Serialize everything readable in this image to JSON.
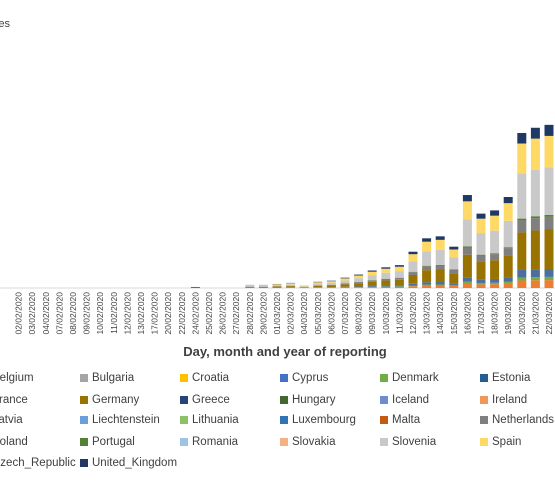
{
  "chart_data": {
    "type": "stacked_bar",
    "y_label": "Cases",
    "x_label": "Day, month and year of reporting",
    "ylim": [
      0,
      8000
    ],
    "categories": [
      null,
      "02/02/2020",
      "03/02/2020",
      "04/02/2020",
      "07/02/2020",
      "08/02/2020",
      "09/02/2020",
      "10/02/2020",
      "11/02/2020",
      "12/02/2020",
      "13/02/2020",
      "17/02/2020",
      "20/02/2020",
      "22/02/2020",
      "24/02/2020",
      "25/02/2020",
      "26/02/2020",
      "27/02/2020",
      "28/02/2020",
      "29/02/2020",
      "01/03/2020",
      "02/03/2020",
      "04/03/2020",
      "05/03/2020",
      "06/03/2020",
      "07/03/2020",
      "08/03/2020",
      "09/03/2020",
      "10/03/2020",
      "11/03/2020",
      "12/03/2020",
      "13/03/2020",
      "14/03/2020",
      "15/03/2020",
      "16/03/2020",
      "17/03/2020",
      "18/03/2020",
      "19/03/2020",
      "20/03/2020",
      "21/03/2020",
      "22/03/2020"
    ],
    "series": [
      {
        "name": "Belgium",
        "color": "#ed7d31",
        "values": [
          0,
          0,
          0,
          0,
          0,
          0,
          0,
          0,
          0,
          0,
          0,
          0,
          0,
          0,
          0,
          0,
          0,
          0,
          6,
          6,
          8,
          10,
          4,
          12,
          14,
          19,
          25,
          33,
          39,
          43,
          68,
          93,
          96,
          77,
          173,
          139,
          145,
          170,
          289,
          299,
          304
        ]
      },
      {
        "name": "Bulgaria",
        "color": "#a5a5a5",
        "values": [
          0,
          0,
          0,
          0,
          0,
          0,
          0,
          0,
          0,
          0,
          0,
          0,
          0,
          0,
          0,
          0,
          0,
          0,
          0,
          0,
          0,
          0,
          0,
          0,
          0,
          0,
          0,
          0,
          0,
          0,
          0,
          0,
          0,
          0,
          0,
          0,
          0,
          0,
          0,
          0,
          0
        ]
      },
      {
        "name": "Croatia",
        "color": "#ffc000",
        "values": [
          0,
          0,
          0,
          0,
          0,
          0,
          0,
          0,
          0,
          0,
          0,
          0,
          0,
          0,
          0,
          0,
          0,
          0,
          0,
          0,
          0,
          0,
          0,
          0,
          0,
          0,
          0,
          0,
          0,
          0,
          0,
          0,
          0,
          0,
          0,
          0,
          0,
          0,
          0,
          0,
          0
        ]
      },
      {
        "name": "Cyprus",
        "color": "#4472c4",
        "values": [
          0,
          0,
          0,
          0,
          0,
          0,
          0,
          0,
          0,
          0,
          0,
          0,
          0,
          0,
          0,
          0,
          0,
          0,
          0,
          0,
          0,
          0,
          0,
          0,
          0,
          0,
          0,
          0,
          0,
          0,
          0,
          0,
          0,
          0,
          0,
          0,
          0,
          0,
          0,
          0,
          0
        ]
      },
      {
        "name": "Denmark",
        "color": "#70ad47",
        "values": [
          0,
          0,
          0,
          0,
          0,
          0,
          0,
          0,
          0,
          0,
          0,
          0,
          0,
          0,
          0,
          0,
          0,
          0,
          2,
          2,
          3,
          4,
          2,
          5,
          5,
          8,
          10,
          13,
          15,
          17,
          27,
          37,
          39,
          31,
          69,
          55,
          58,
          68,
          116,
          119,
          122
        ]
      },
      {
        "name": "Estonia",
        "color": "#255e91",
        "values": [
          0,
          0,
          0,
          0,
          0,
          0,
          0,
          0,
          0,
          0,
          0,
          0,
          0,
          0,
          0,
          0,
          0,
          0,
          0,
          0,
          0,
          0,
          0,
          0,
          0,
          0,
          0,
          0,
          0,
          0,
          0,
          0,
          0,
          0,
          0,
          0,
          0,
          0,
          0,
          0,
          0
        ]
      },
      {
        "name": "France",
        "color": "#4e6f9e",
        "values": [
          0,
          0,
          0,
          0,
          0,
          0,
          0,
          0,
          0,
          0,
          0,
          0,
          0,
          0,
          40,
          0,
          0,
          0,
          6,
          6,
          8,
          10,
          4,
          12,
          14,
          19,
          25,
          33,
          39,
          43,
          68,
          93,
          96,
          77,
          173,
          139,
          145,
          170,
          289,
          299,
          304
        ]
      },
      {
        "name": "Germany",
        "color": "#997300",
        "values": [
          0,
          0,
          0,
          0,
          0,
          0,
          0,
          0,
          0,
          0,
          0,
          0,
          0,
          0,
          0,
          0,
          0,
          0,
          29,
          29,
          38,
          48,
          20,
          58,
          68,
          96,
          125,
          163,
          193,
          213,
          338,
          463,
          481,
          385,
          866,
          693,
          723,
          848,
          1444,
          1493,
          1520
        ]
      },
      {
        "name": "Greece",
        "color": "#264478",
        "values": [
          0,
          0,
          0,
          0,
          0,
          0,
          0,
          0,
          0,
          0,
          0,
          0,
          0,
          0,
          0,
          0,
          0,
          0,
          0,
          0,
          0,
          0,
          0,
          0,
          0,
          0,
          0,
          0,
          0,
          0,
          0,
          0,
          0,
          0,
          0,
          0,
          0,
          0,
          0,
          0,
          0
        ]
      },
      {
        "name": "Hungary",
        "color": "#43682b",
        "values": [
          0,
          0,
          0,
          0,
          0,
          0,
          0,
          0,
          0,
          0,
          0,
          0,
          0,
          0,
          0,
          0,
          0,
          0,
          0,
          0,
          0,
          0,
          0,
          0,
          0,
          0,
          0,
          0,
          0,
          0,
          0,
          0,
          0,
          0,
          0,
          0,
          0,
          0,
          0,
          0,
          0
        ]
      },
      {
        "name": "Iceland",
        "color": "#698ed0",
        "values": [
          0,
          0,
          0,
          0,
          0,
          0,
          0,
          0,
          0,
          0,
          0,
          0,
          0,
          0,
          0,
          0,
          0,
          0,
          0,
          0,
          0,
          0,
          0,
          0,
          0,
          0,
          0,
          0,
          0,
          0,
          0,
          0,
          0,
          0,
          0,
          0,
          0,
          0,
          0,
          0,
          0
        ]
      },
      {
        "name": "Ireland",
        "color": "#f1975a",
        "values": [
          0,
          0,
          0,
          0,
          0,
          0,
          0,
          0,
          0,
          0,
          0,
          0,
          0,
          0,
          0,
          0,
          0,
          0,
          0,
          0,
          0,
          0,
          0,
          0,
          0,
          0,
          0,
          0,
          0,
          0,
          0,
          0,
          0,
          0,
          0,
          0,
          0,
          0,
          0,
          0,
          0
        ]
      },
      {
        "name": "Latvia",
        "color": "#b7b7b7",
        "values": [
          0,
          0,
          0,
          0,
          0,
          0,
          0,
          0,
          0,
          0,
          0,
          0,
          0,
          0,
          0,
          0,
          0,
          0,
          0,
          0,
          0,
          0,
          0,
          0,
          0,
          0,
          0,
          0,
          0,
          0,
          0,
          0,
          0,
          0,
          0,
          0,
          0,
          0,
          0,
          0,
          0
        ]
      },
      {
        "name": "Liechtenstein",
        "color": "#6a9fd8",
        "values": [
          0,
          0,
          0,
          0,
          0,
          0,
          0,
          0,
          0,
          0,
          0,
          0,
          0,
          0,
          0,
          0,
          0,
          0,
          0,
          0,
          0,
          0,
          0,
          0,
          0,
          0,
          0,
          0,
          0,
          0,
          0,
          0,
          0,
          0,
          0,
          0,
          0,
          0,
          0,
          0,
          0
        ]
      },
      {
        "name": "Lithuania",
        "color": "#8cc168",
        "values": [
          0,
          0,
          0,
          0,
          0,
          0,
          0,
          0,
          0,
          0,
          0,
          0,
          0,
          0,
          0,
          0,
          0,
          0,
          0,
          0,
          0,
          0,
          0,
          0,
          0,
          0,
          0,
          0,
          0,
          0,
          0,
          0,
          0,
          0,
          0,
          0,
          0,
          0,
          0,
          0,
          0
        ]
      },
      {
        "name": "Luxembourg",
        "color": "#2f75b5",
        "values": [
          0,
          0,
          0,
          0,
          0,
          0,
          0,
          0,
          0,
          0,
          0,
          0,
          0,
          0,
          0,
          0,
          0,
          0,
          0,
          0,
          0,
          0,
          0,
          0,
          0,
          0,
          0,
          0,
          0,
          0,
          0,
          0,
          0,
          0,
          0,
          0,
          0,
          0,
          0,
          0,
          0
        ]
      },
      {
        "name": "Malta",
        "color": "#c55a11",
        "values": [
          0,
          0,
          0,
          0,
          0,
          0,
          0,
          0,
          0,
          0,
          0,
          0,
          0,
          0,
          0,
          0,
          0,
          0,
          0,
          0,
          0,
          0,
          0,
          0,
          0,
          0,
          0,
          0,
          0,
          0,
          0,
          0,
          0,
          0,
          0,
          0,
          0,
          0,
          0,
          0,
          0
        ]
      },
      {
        "name": "Netherlands",
        "color": "#7f7f7f",
        "values": [
          0,
          0,
          0,
          0,
          0,
          0,
          0,
          0,
          0,
          0,
          0,
          0,
          0,
          0,
          0,
          0,
          0,
          0,
          9,
          9,
          12,
          15,
          6,
          18,
          22,
          31,
          40,
          52,
          62,
          68,
          108,
          148,
          154,
          123,
          277,
          222,
          231,
          271,
          462,
          478,
          486
        ]
      },
      {
        "name": "Poland",
        "color": "#806000",
        "values": [
          0,
          0,
          0,
          0,
          0,
          0,
          0,
          0,
          0,
          0,
          0,
          0,
          0,
          0,
          0,
          0,
          0,
          0,
          0,
          0,
          0,
          0,
          0,
          0,
          0,
          0,
          0,
          0,
          0,
          0,
          0,
          0,
          0,
          0,
          0,
          0,
          0,
          0,
          0,
          0,
          0
        ]
      },
      {
        "name": "Portugal",
        "color": "#548235",
        "values": [
          0,
          0,
          0,
          0,
          0,
          0,
          0,
          0,
          0,
          0,
          0,
          0,
          0,
          0,
          0,
          0,
          0,
          0,
          0,
          0,
          0,
          1,
          0,
          2,
          3,
          4,
          6,
          8,
          9,
          10,
          16,
          22,
          23,
          18,
          42,
          33,
          35,
          41,
          69,
          72,
          73
        ]
      },
      {
        "name": "Romania",
        "color": "#9dc3e6",
        "values": [
          0,
          0,
          0,
          0,
          0,
          0,
          0,
          0,
          0,
          0,
          0,
          0,
          0,
          0,
          0,
          0,
          0,
          0,
          0,
          0,
          0,
          0,
          0,
          0,
          0,
          0,
          0,
          0,
          0,
          0,
          0,
          0,
          0,
          0,
          0,
          0,
          0,
          0,
          0,
          0,
          0
        ]
      },
      {
        "name": "Slovakia",
        "color": "#f4b183",
        "values": [
          0,
          0,
          0,
          0,
          0,
          0,
          0,
          0,
          0,
          0,
          0,
          0,
          0,
          0,
          0,
          0,
          0,
          0,
          0,
          0,
          0,
          0,
          0,
          0,
          0,
          0,
          0,
          0,
          0,
          0,
          0,
          0,
          0,
          0,
          0,
          0,
          0,
          0,
          0,
          0,
          0
        ]
      },
      {
        "name": "Slovenia",
        "color": "#c9c9c9",
        "values": [
          0,
          0,
          0,
          0,
          0,
          0,
          0,
          0,
          0,
          0,
          0,
          0,
          0,
          0,
          0,
          0,
          0,
          0,
          35,
          35,
          45,
          57,
          24,
          69,
          81,
          116,
          150,
          195,
          231,
          255,
          405,
          555,
          578,
          462,
          1040,
          831,
          867,
          1017,
          1733,
          1791,
          1824
        ]
      },
      {
        "name": "Spain",
        "color": "#ffd966",
        "values": [
          0,
          0,
          0,
          0,
          0,
          0,
          0,
          0,
          0,
          0,
          0,
          0,
          0,
          0,
          0,
          0,
          0,
          0,
          23,
          23,
          30,
          38,
          16,
          46,
          54,
          77,
          100,
          130,
          154,
          170,
          270,
          370,
          385,
          308,
          693,
          554,
          578,
          678,
          1155,
          1194,
          1216
        ]
      },
      {
        "name": "Czech_Republic",
        "color": "#5b9bd5",
        "values": [
          0,
          0,
          0,
          0,
          0,
          0,
          0,
          0,
          0,
          0,
          0,
          0,
          0,
          0,
          0,
          0,
          0,
          0,
          0,
          0,
          0,
          0,
          0,
          0,
          0,
          0,
          0,
          0,
          0,
          0,
          0,
          0,
          0,
          0,
          0,
          0,
          0,
          0,
          0,
          0,
          0
        ]
      },
      {
        "name": "United_Kingdom",
        "color": "#203864",
        "values": [
          0,
          0,
          0,
          0,
          0,
          0,
          0,
          0,
          0,
          0,
          0,
          0,
          0,
          0,
          0,
          0,
          0,
          0,
          8,
          8,
          11,
          13,
          6,
          16,
          19,
          27,
          35,
          46,
          54,
          60,
          95,
          130,
          135,
          108,
          243,
          194,
          202,
          237,
          404,
          418,
          426
        ]
      }
    ]
  }
}
